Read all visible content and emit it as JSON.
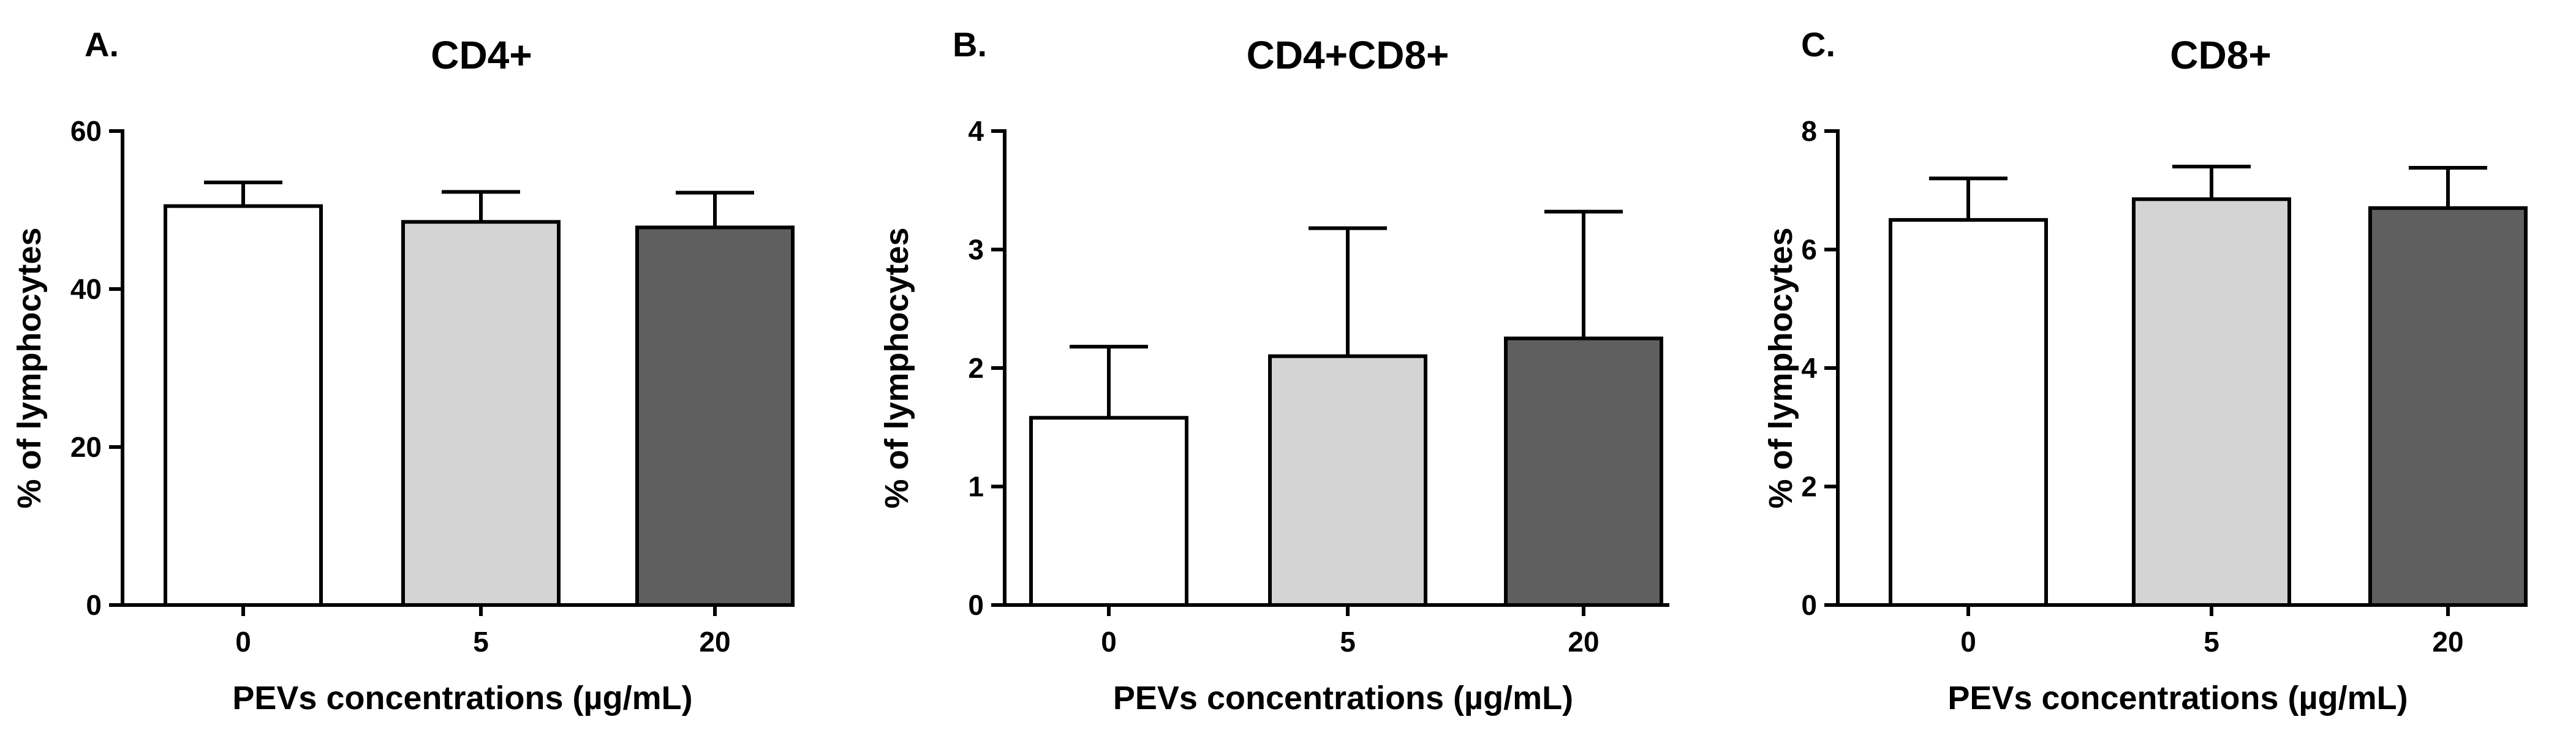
{
  "chart_data": [
    {
      "type": "bar",
      "panel_label": "A.",
      "title": "CD4+",
      "xlabel": "PEVs concentrations (µg/mL)",
      "ylabel": "% of lymphocytes",
      "categories": [
        "0",
        "5",
        "20"
      ],
      "values": [
        50.5,
        48.5,
        47.8
      ],
      "errors": [
        3.0,
        3.8,
        4.4
      ],
      "bar_colors": [
        "#ffffff",
        "#d4d4d4",
        "#5f5f5f"
      ],
      "ylim": [
        0,
        60
      ],
      "yticks": [
        0,
        20,
        40,
        60
      ]
    },
    {
      "type": "bar",
      "panel_label": "B.",
      "title": "CD4+CD8+",
      "xlabel": "PEVs concentrations (µg/mL)",
      "ylabel": "% of lymphocytes",
      "categories": [
        "0",
        "5",
        "20"
      ],
      "values": [
        1.58,
        2.1,
        2.25
      ],
      "errors": [
        0.6,
        1.08,
        1.07
      ],
      "bar_colors": [
        "#ffffff",
        "#d4d4d4",
        "#5f5f5f"
      ],
      "ylim": [
        0,
        4
      ],
      "yticks": [
        0,
        1,
        2,
        3,
        4
      ]
    },
    {
      "type": "bar",
      "panel_label": "C.",
      "title": "CD8+",
      "xlabel": "PEVs concentrations (µg/mL)",
      "ylabel": "% of lymphocytes",
      "categories": [
        "0",
        "5",
        "20"
      ],
      "values": [
        6.5,
        6.85,
        6.7
      ],
      "errors": [
        0.7,
        0.55,
        0.68
      ],
      "bar_colors": [
        "#ffffff",
        "#d4d4d4",
        "#5f5f5f"
      ],
      "ylim": [
        0,
        8
      ],
      "yticks": [
        0,
        2,
        4,
        6,
        8
      ]
    }
  ]
}
